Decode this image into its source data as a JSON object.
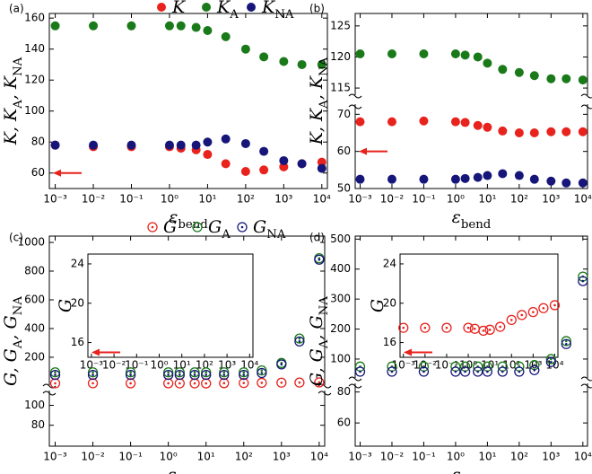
{
  "chart_data": [
    {
      "type": "scatter",
      "label": "(a)",
      "marker": "filled",
      "xscale": "log",
      "xlim": [
        0.0007,
        14000
      ],
      "xticks": [
        {
          "value": 0.001,
          "label": "10⁻³"
        },
        {
          "value": 0.01,
          "label": "10⁻²"
        },
        {
          "value": 0.1,
          "label": "10⁻¹"
        },
        {
          "value": 1,
          "label": "10⁰"
        },
        {
          "value": 10,
          "label": "10¹"
        },
        {
          "value": 100,
          "label": "10²"
        },
        {
          "value": 1000,
          "label": "10³"
        },
        {
          "value": 10000,
          "label": "10⁴"
        }
      ],
      "xlabel": [
        {
          "text": "ε"
        },
        {
          "sub": "bend"
        }
      ],
      "ylabel": [
        {
          "text": "K, K"
        },
        {
          "sub": "A"
        },
        {
          "text": ", K"
        },
        {
          "sub": "NA"
        }
      ],
      "segments": [
        {
          "ylim": [
            50,
            163
          ],
          "yticks": [
            60,
            80,
            100,
            120,
            140,
            160
          ]
        }
      ],
      "arrow_y": 60,
      "x": [
        0.001,
        0.01,
        0.1,
        1,
        2,
        5,
        10,
        30,
        100,
        300,
        1000,
        3000,
        10000
      ],
      "series": [
        {
          "name": "K",
          "color": "#e8221c",
          "values": [
            78,
            77,
            77,
            77,
            76,
            75,
            72,
            66,
            61,
            62,
            64,
            66,
            67
          ]
        },
        {
          "name": "K",
          "sub": "A",
          "color": "#1a7a1a",
          "values": [
            155,
            155,
            155,
            155,
            155,
            154,
            152,
            148,
            140,
            135,
            132,
            130,
            130
          ]
        },
        {
          "name": "K",
          "sub": "NA",
          "color": "#16167a",
          "values": [
            78,
            78,
            78,
            78,
            78,
            78,
            80,
            82,
            79,
            74,
            68,
            66,
            63
          ]
        }
      ]
    },
    {
      "type": "scatter",
      "label": "(b)",
      "marker": "filled",
      "xscale": "log",
      "xlim": [
        0.0007,
        14000
      ],
      "xticks": [
        {
          "value": 0.001,
          "label": "10⁻³"
        },
        {
          "value": 0.01,
          "label": "10⁻²"
        },
        {
          "value": 0.1,
          "label": "10⁻¹"
        },
        {
          "value": 1,
          "label": "10⁰"
        },
        {
          "value": 10,
          "label": "10¹"
        },
        {
          "value": 100,
          "label": "10²"
        },
        {
          "value": 1000,
          "label": "10³"
        },
        {
          "value": 10000,
          "label": "10⁴"
        }
      ],
      "xlabel": [
        {
          "text": "ε"
        },
        {
          "sub": "bend"
        }
      ],
      "ylabel": [
        {
          "text": "K, K"
        },
        {
          "sub": "A"
        },
        {
          "text": ", K"
        },
        {
          "sub": "NA"
        }
      ],
      "segments": [
        {
          "ylim": [
            114,
            127
          ],
          "yticks": [
            115,
            120,
            125
          ]
        },
        {
          "ylim": [
            50,
            72.5
          ],
          "yticks": [
            50,
            60,
            70
          ]
        }
      ],
      "arrow_y": 60,
      "x": [
        0.001,
        0.01,
        0.1,
        1,
        2,
        5,
        10,
        30,
        100,
        300,
        1000,
        3000,
        10000
      ],
      "series": [
        {
          "name": "K",
          "color": "#e8221c",
          "values": [
            68,
            68,
            68.2,
            68,
            67.8,
            67,
            66.5,
            65.5,
            65,
            65,
            65.3,
            65.3,
            65.3
          ]
        },
        {
          "name": "K",
          "sub": "A",
          "color": "#1a7a1a",
          "values": [
            120.5,
            120.5,
            120.5,
            120.5,
            120.3,
            120,
            119,
            118,
            117.5,
            117,
            116.5,
            116.5,
            116.3
          ]
        },
        {
          "name": "K",
          "sub": "NA",
          "color": "#16167a",
          "values": [
            52.5,
            52.5,
            52.5,
            52.5,
            52.7,
            53,
            53.5,
            54,
            53.5,
            52.5,
            52,
            51.5,
            51.5
          ]
        }
      ]
    },
    {
      "type": "scatter",
      "label": "(c)",
      "marker": "open",
      "xscale": "log",
      "xlim": [
        0.0007,
        14000
      ],
      "xticks": [
        {
          "value": 0.001,
          "label": "10⁻³"
        },
        {
          "value": 0.01,
          "label": "10⁻²"
        },
        {
          "value": 0.1,
          "label": "10⁻¹"
        },
        {
          "value": 1,
          "label": "10⁰"
        },
        {
          "value": 10,
          "label": "10¹"
        },
        {
          "value": 100,
          "label": "10²"
        },
        {
          "value": 1000,
          "label": "10³"
        },
        {
          "value": 10000,
          "label": "10⁴"
        }
      ],
      "xlabel": [
        {
          "text": "ε"
        },
        {
          "sub": "bend"
        }
      ],
      "ylabel": [
        {
          "text": "G, G"
        },
        {
          "sub": "A"
        },
        {
          "text": ", G"
        },
        {
          "sub": "NA"
        }
      ],
      "segments": [
        {
          "ylim": [
            12,
            1044
          ],
          "yticks": [
            200,
            400,
            600,
            800,
            1000
          ]
        },
        {
          "ylim": [
            59,
            114
          ],
          "yticks": [
            80,
            100
          ]
        }
      ],
      "inset": {
        "ylim": [
          14.5,
          25
        ],
        "yticks": [
          16,
          20,
          24
        ],
        "ylabel": [
          {
            "text": "G"
          }
        ],
        "arrow_y": 15
      },
      "x": [
        0.001,
        0.01,
        0.1,
        1,
        2,
        5,
        10,
        30,
        100,
        300,
        1000,
        3000,
        10000
      ],
      "series": [
        {
          "name": "G",
          "color": "#e8221c",
          "values": [
            18.3,
            18.8,
            18.6,
            18.4,
            18.2,
            18.0,
            17.8,
            19.3,
            20.6,
            21.8,
            22.8,
            23.5,
            24.6
          ]
        },
        {
          "name": "G",
          "sub": "A",
          "color": "#1a7a1a",
          "values": [
            95,
            95,
            95,
            95,
            95,
            95,
            95,
            95,
            95,
            108,
            160,
            330,
            890
          ]
        },
        {
          "name": "G",
          "sub": "NA",
          "color": "#16167a",
          "values": [
            77,
            77,
            77,
            77,
            77,
            77,
            77,
            77,
            77,
            90,
            150,
            310,
            880
          ]
        }
      ]
    },
    {
      "type": "scatter",
      "label": "(d)",
      "marker": "open",
      "xscale": "log",
      "xlim": [
        0.0007,
        14000
      ],
      "xticks": [
        {
          "value": 0.001,
          "label": "10⁻³"
        },
        {
          "value": 0.01,
          "label": "10⁻²"
        },
        {
          "value": 0.1,
          "label": "10⁻¹"
        },
        {
          "value": 1,
          "label": "10⁰"
        },
        {
          "value": 10,
          "label": "10¹"
        },
        {
          "value": 100,
          "label": "10²"
        },
        {
          "value": 1000,
          "label": "10³"
        },
        {
          "value": 10000,
          "label": "10⁴"
        }
      ],
      "xlabel": [
        {
          "text": "ε"
        },
        {
          "sub": "bend"
        }
      ],
      "ylabel": [
        {
          "text": "G, G"
        },
        {
          "sub": "A"
        },
        {
          "text": ", G"
        },
        {
          "sub": "NA"
        }
      ],
      "segments": [
        {
          "ylim": [
            40,
            510
          ],
          "yticks": [
            100,
            200,
            300,
            400,
            500
          ]
        },
        {
          "ylim": [
            45,
            85
          ],
          "yticks": [
            60,
            80
          ]
        }
      ],
      "inset": {
        "ylim": [
          14.5,
          25
        ],
        "yticks": [
          16,
          20,
          24
        ],
        "ylabel": [
          {
            "text": "G"
          }
        ],
        "arrow_y": 15
      },
      "x": [
        0.001,
        0.01,
        0.1,
        1,
        2,
        5,
        10,
        30,
        100,
        300,
        1000,
        3000,
        10000
      ],
      "series": [
        {
          "name": "G",
          "color": "#e8221c",
          "values": [
            17.5,
            17.5,
            17.5,
            17.5,
            17.4,
            17.2,
            17.3,
            17.6,
            18.3,
            18.8,
            19.1,
            19.5,
            19.8
          ]
        },
        {
          "name": "G",
          "sub": "A",
          "color": "#1a7a1a",
          "values": [
            75,
            75,
            75,
            75,
            75,
            75,
            75,
            75,
            75,
            80,
            100,
            160,
            375
          ]
        },
        {
          "name": "G",
          "sub": "NA",
          "color": "#16167a",
          "values": [
            58,
            58,
            58,
            58,
            58,
            58,
            58,
            58,
            58,
            63,
            90,
            150,
            360
          ]
        }
      ]
    }
  ]
}
